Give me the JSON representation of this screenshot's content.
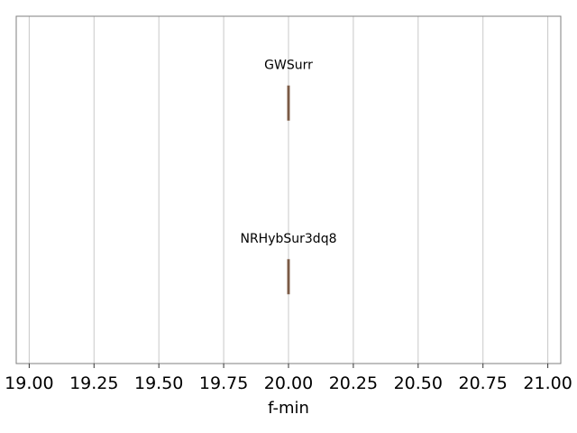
{
  "chart_data": {
    "type": "box",
    "orientation": "horizontal",
    "xlabel": "f-min",
    "xlim": [
      18.95,
      21.05
    ],
    "xticks": [
      19.0,
      19.25,
      19.5,
      19.75,
      20.0,
      20.25,
      20.5,
      20.75,
      21.0
    ],
    "xtick_labels": [
      "19.00",
      "19.25",
      "19.50",
      "19.75",
      "20.00",
      "20.25",
      "20.50",
      "20.75",
      "21.00"
    ],
    "grid": "vertical",
    "box_color": "#d9a37a",
    "series": [
      {
        "name": "GWSurr",
        "min": 20.0,
        "q1": 20.0,
        "median": 20.0,
        "q3": 20.0,
        "max": 20.0
      },
      {
        "name": "NRHybSur3dq8",
        "min": 20.0,
        "q1": 20.0,
        "median": 20.0,
        "q3": 20.0,
        "max": 20.0
      }
    ]
  }
}
